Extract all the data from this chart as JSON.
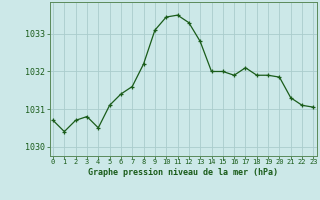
{
  "x": [
    0,
    1,
    2,
    3,
    4,
    5,
    6,
    7,
    8,
    9,
    10,
    11,
    12,
    13,
    14,
    15,
    16,
    17,
    18,
    19,
    20,
    21,
    22,
    23
  ],
  "y": [
    1030.7,
    1030.4,
    1030.7,
    1030.8,
    1030.5,
    1031.1,
    1031.4,
    1031.6,
    1032.2,
    1033.1,
    1033.45,
    1033.5,
    1033.3,
    1032.8,
    1032.0,
    1032.0,
    1031.9,
    1032.1,
    1031.9,
    1031.9,
    1031.85,
    1031.3,
    1031.1,
    1031.05
  ],
  "line_color": "#1a5c1a",
  "marker_color": "#1a5c1a",
  "bg_color": "#cce8e8",
  "grid_color": "#aacccc",
  "xlabel": "Graphe pression niveau de la mer (hPa)",
  "xlabel_color": "#1a5c1a",
  "tick_color": "#1a5c1a",
  "ylim_min": 1029.75,
  "ylim_max": 1033.85,
  "yticks": [
    1030,
    1031,
    1032,
    1033
  ],
  "xticks": [
    0,
    1,
    2,
    3,
    4,
    5,
    6,
    7,
    8,
    9,
    10,
    11,
    12,
    13,
    14,
    15,
    16,
    17,
    18,
    19,
    20,
    21,
    22,
    23
  ],
  "spine_color": "#5a8a5a"
}
